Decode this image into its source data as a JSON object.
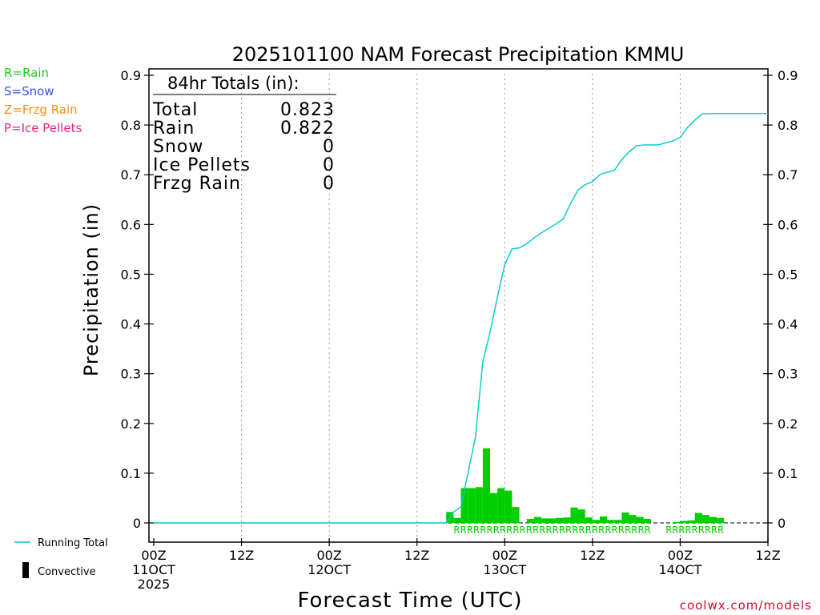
{
  "chart_data": {
    "type": "bar",
    "title": "2025101100 NAM Forecast Precipitation KMMU",
    "ylabel": "Precipitation (in)",
    "xlabel": "Forecast Time (UTC)",
    "ylim": [
      0,
      0.9
    ],
    "xlim": [
      0,
      84
    ],
    "y_ticks": [
      "0",
      "0.1",
      "0.2",
      "0.3",
      "0.4",
      "0.5",
      "0.6",
      "0.7",
      "0.8",
      "0.9"
    ],
    "x_ticks": [
      {
        "hour": 0,
        "lines": [
          "00Z",
          "11OCT",
          "2025"
        ]
      },
      {
        "hour": 12,
        "lines": [
          "12Z"
        ]
      },
      {
        "hour": 24,
        "lines": [
          "00Z",
          "12OCT"
        ]
      },
      {
        "hour": 36,
        "lines": [
          "12Z"
        ]
      },
      {
        "hour": 48,
        "lines": [
          "00Z",
          "13OCT"
        ]
      },
      {
        "hour": 60,
        "lines": [
          "12Z"
        ]
      },
      {
        "hour": 72,
        "lines": [
          "00Z",
          "14OCT"
        ]
      },
      {
        "hour": 84,
        "lines": [
          "12Z"
        ]
      }
    ],
    "grid": "vertical dotted at each x tick",
    "series": [
      {
        "name": "Hourly Precipitation",
        "kind": "bar",
        "color": "#00d000",
        "hours": [
          41,
          42,
          43,
          44,
          45,
          46,
          47,
          48,
          49,
          50,
          51,
          52,
          53,
          54,
          55,
          56,
          57,
          58,
          59,
          60,
          61,
          62,
          63,
          64,
          65,
          66,
          67,
          68,
          72,
          73,
          74,
          75,
          76,
          77,
          78
        ],
        "values": [
          0.022,
          0.01,
          0.07,
          0.07,
          0.072,
          0.15,
          0.06,
          0.07,
          0.065,
          0.032,
          0,
          0.008,
          0.012,
          0.009,
          0.009,
          0.01,
          0.011,
          0.031,
          0.027,
          0.011,
          0.006,
          0.013,
          0.006,
          0.006,
          0.021,
          0.016,
          0.012,
          0.008,
          0.002,
          0.004,
          0.005,
          0.02,
          0.016,
          0.012,
          0.01
        ]
      },
      {
        "name": "Running Total",
        "kind": "line",
        "color": "#00c8c8",
        "hours": [
          0,
          40,
          41,
          42,
          43,
          44,
          45,
          46,
          47,
          48,
          49,
          50,
          51,
          52,
          53,
          54,
          55,
          56,
          57,
          58,
          59,
          60,
          61,
          62,
          63,
          64,
          65,
          66,
          67,
          68,
          69,
          70,
          71,
          72,
          73,
          74,
          75,
          76,
          77,
          78,
          84
        ],
        "values": [
          0,
          0,
          0.022,
          0.032,
          0.102,
          0.172,
          0.324,
          0.384,
          0.454,
          0.519,
          0.551,
          0.553,
          0.561,
          0.573,
          0.583,
          0.592,
          0.601,
          0.611,
          0.642,
          0.669,
          0.68,
          0.686,
          0.7,
          0.705,
          0.709,
          0.73,
          0.746,
          0.758,
          0.76,
          0.76,
          0.76,
          0.764,
          0.768,
          0.775,
          0.795,
          0.81,
          0.822,
          0.823,
          0.823,
          0.823,
          0.823
        ]
      }
    ],
    "ptype_marks": [
      {
        "text": "RRRRRRRRRRRRRRRRRRRRRRRRRRRRRR",
        "start_hour": 41,
        "end_hour": 68
      },
      {
        "text": "RRRRRRRRR",
        "start_hour": 70,
        "end_hour": 78
      }
    ],
    "totals_box": {
      "heading": "84hr Totals (in):",
      "rows": [
        {
          "label": "Total",
          "value": "0.823"
        },
        {
          "label": "Rain",
          "value": "0.822"
        },
        {
          "label": "Snow",
          "value": "0"
        },
        {
          "label": "Ice Pellets",
          "value": "0"
        },
        {
          "label": "Frzg Rain",
          "value": "0"
        }
      ]
    },
    "ptype_legend": [
      {
        "text": "R=Rain",
        "color": "#22cc22"
      },
      {
        "text": "S=Snow",
        "color": "#3355dd"
      },
      {
        "text": "Z=Frzg Rain",
        "color": "#ff8c1a"
      },
      {
        "text": "P=Ice Pellets",
        "color": "#ee2277"
      }
    ],
    "bottom_legend": [
      {
        "text": "Running Total",
        "symbol": "line",
        "color": "#00c8c8"
      },
      {
        "text": "Convective",
        "symbol": "bar",
        "color": "#000000"
      }
    ],
    "credit": "coolwx.com/models"
  }
}
